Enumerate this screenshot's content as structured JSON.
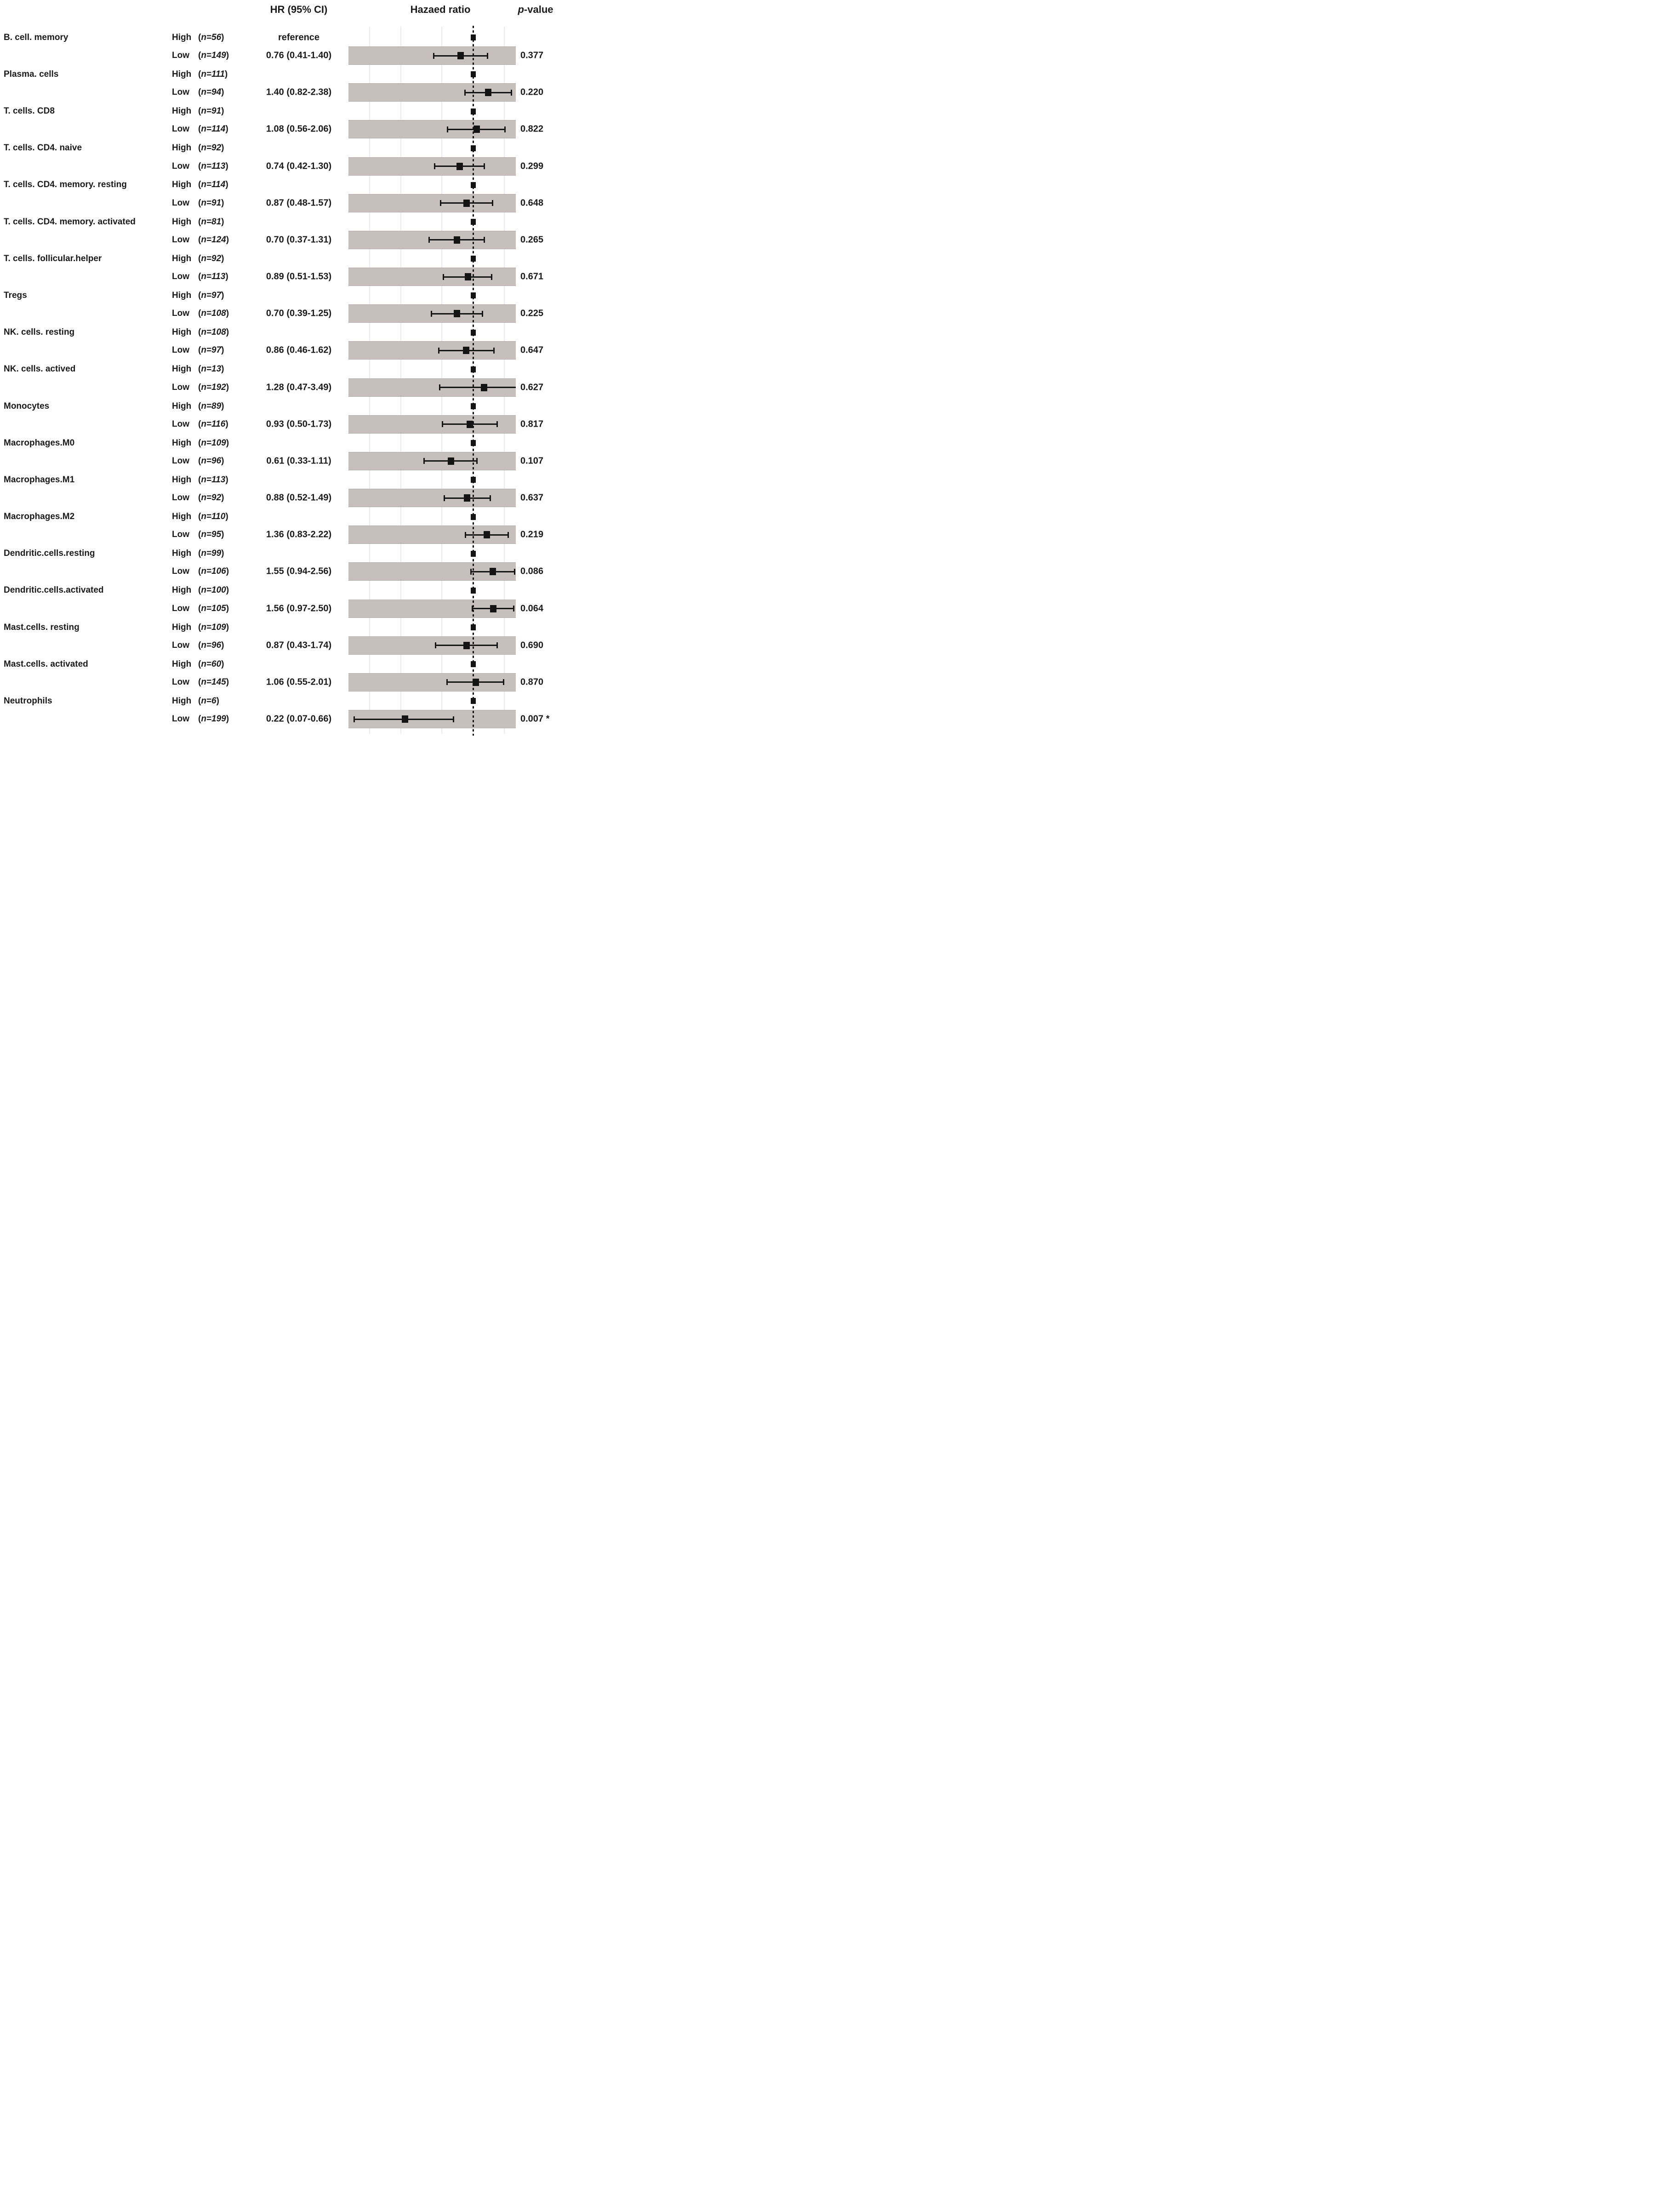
{
  "header": {
    "hr_ci": "HR (95% CI)",
    "hazard_ratio": "Hazaed ratio",
    "p_italic": "p",
    "p_rest": "-value"
  },
  "colors": {
    "band": "#c6bfbb",
    "band_border": "#b2aaa6",
    "gridline_tint": "rgba(80,60,48,0.10)",
    "marker_black": "#141414",
    "text": "#1a1a1a",
    "background": "#ffffff"
  },
  "chart_data": {
    "type": "forest",
    "x_scale": "log10",
    "reference_value": 1.0,
    "gridline_ticks": [
      0.1,
      0.2,
      0.5,
      1,
      2
    ],
    "band_x_range": [
      0.063,
      2.6
    ],
    "reference_label": "reference",
    "columns": [
      "cell type",
      "group (n)",
      "HR (95% CI)",
      "Hazaed ratio",
      "p-value"
    ],
    "rows": [
      {
        "name": "B. cell. memory",
        "high_label": "High (n=56)",
        "low_label": "Low (n=149)",
        "high_hr_text": "reference",
        "hr_ci_text": "0.76 (0.41-1.40)",
        "hr": 0.76,
        "ci_low": 0.41,
        "ci_high": 1.4,
        "p_text": "0.377"
      },
      {
        "name": "Plasma. cells",
        "high_label": "High (n=111)",
        "low_label": "Low (n=94)",
        "hr_ci_text": "1.40 (0.82-2.38)",
        "hr": 1.4,
        "ci_low": 0.82,
        "ci_high": 2.38,
        "p_text": "0.220"
      },
      {
        "name": "T. cells. CD8",
        "high_label": "High (n=91)",
        "low_label": "Low (n=114)",
        "hr_ci_text": "1.08 (0.56-2.06)",
        "hr": 1.08,
        "ci_low": 0.56,
        "ci_high": 2.06,
        "p_text": "0.822"
      },
      {
        "name": "T. cells. CD4. naive",
        "high_label": "High (n=92)",
        "low_label": "Low (n=113)",
        "hr_ci_text": "0.74 (0.42-1.30)",
        "hr": 0.74,
        "ci_low": 0.42,
        "ci_high": 1.3,
        "p_text": "0.299"
      },
      {
        "name": "T. cells. CD4. memory. resting",
        "high_label": "High (n=114)",
        "low_label": "Low (n=91)",
        "hr_ci_text": "0.87 (0.48-1.57)",
        "hr": 0.87,
        "ci_low": 0.48,
        "ci_high": 1.57,
        "p_text": "0.648"
      },
      {
        "name": "T. cells. CD4. memory. activated",
        "high_label": "High (n=81)",
        "low_label": "Low (n=124)",
        "hr_ci_text": "0.70 (0.37-1.31)",
        "hr": 0.7,
        "ci_low": 0.37,
        "ci_high": 1.31,
        "p_text": "0.265"
      },
      {
        "name": "T. cells. follicular.helper",
        "high_label": "High (n=92)",
        "low_label": "Low (n=113)",
        "hr_ci_text": "0.89 (0.51-1.53)",
        "hr": 0.89,
        "ci_low": 0.51,
        "ci_high": 1.53,
        "p_text": "0.671"
      },
      {
        "name": "Tregs",
        "high_label": "High (n=97)",
        "low_label": "Low (n=108)",
        "hr_ci_text": "0.70 (0.39-1.25)",
        "hr": 0.7,
        "ci_low": 0.39,
        "ci_high": 1.25,
        "p_text": "0.225"
      },
      {
        "name": "NK. cells. resting",
        "high_label": "High (n=108)",
        "low_label": "Low (n=97)",
        "hr_ci_text": "0.86 (0.46-1.62)",
        "hr": 0.86,
        "ci_low": 0.46,
        "ci_high": 1.62,
        "p_text": "0.647"
      },
      {
        "name": "NK. cells. actived",
        "high_label": "High (n=13)",
        "low_label": "Low (n=192)",
        "hr_ci_text": "1.28 (0.47-3.49)",
        "hr": 1.28,
        "ci_low": 0.47,
        "ci_high": 3.49,
        "p_text": "0.627"
      },
      {
        "name": "Monocytes",
        "high_label": "High (n=89)",
        "low_label": "Low (n=116)",
        "hr_ci_text": "0.93 (0.50-1.73)",
        "hr": 0.93,
        "ci_low": 0.5,
        "ci_high": 1.73,
        "p_text": "0.817"
      },
      {
        "name": "Macrophages.M0",
        "high_label": "High (n=109)",
        "low_label": "Low (n=96)",
        "hr_ci_text": "0.61 (0.33-1.11)",
        "hr": 0.61,
        "ci_low": 0.33,
        "ci_high": 1.11,
        "p_text": "0.107"
      },
      {
        "name": "Macrophages.M1",
        "high_label": "High (n=113)",
        "low_label": "Low (n=92)",
        "hr_ci_text": "0.88 (0.52-1.49)",
        "hr": 0.88,
        "ci_low": 0.52,
        "ci_high": 1.49,
        "p_text": "0.637"
      },
      {
        "name": "Macrophages.M2",
        "high_label": "High (n=110)",
        "low_label": "Low (n=95)",
        "hr_ci_text": "1.36 (0.83-2.22)",
        "hr": 1.36,
        "ci_low": 0.83,
        "ci_high": 2.22,
        "p_text": "0.219"
      },
      {
        "name": "Dendritic.cells.resting",
        "high_label": "High (n=99)",
        "low_label": "Low (n=106)",
        "hr_ci_text": "1.55 (0.94-2.56)",
        "hr": 1.55,
        "ci_low": 0.94,
        "ci_high": 2.56,
        "p_text": "0.086"
      },
      {
        "name": "Dendritic.cells.activated",
        "high_label": "High (n=100)",
        "low_label": "Low (n=105)",
        "hr_ci_text": "1.56 (0.97-2.50)",
        "hr": 1.56,
        "ci_low": 0.97,
        "ci_high": 2.5,
        "p_text": "0.064"
      },
      {
        "name": "Mast.cells. resting",
        "high_label": "High (n=109)",
        "low_label": "Low (n=96)",
        "hr_ci_text": "0.87 (0.43-1.74)",
        "hr": 0.87,
        "ci_low": 0.43,
        "ci_high": 1.74,
        "p_text": "0.690"
      },
      {
        "name": "Mast.cells. activated",
        "high_label": "High (n=60)",
        "low_label": "Low (n=145)",
        "hr_ci_text": "1.06 (0.55-2.01)",
        "hr": 1.06,
        "ci_low": 0.55,
        "ci_high": 2.01,
        "p_text": "0.870"
      },
      {
        "name": "Neutrophils",
        "high_label": "High (n=6)",
        "low_label": "Low (n=199)",
        "hr_ci_text": "0.22 (0.07-0.66)",
        "hr": 0.22,
        "ci_low": 0.07,
        "ci_high": 0.66,
        "p_text": "0.007 *"
      }
    ]
  }
}
